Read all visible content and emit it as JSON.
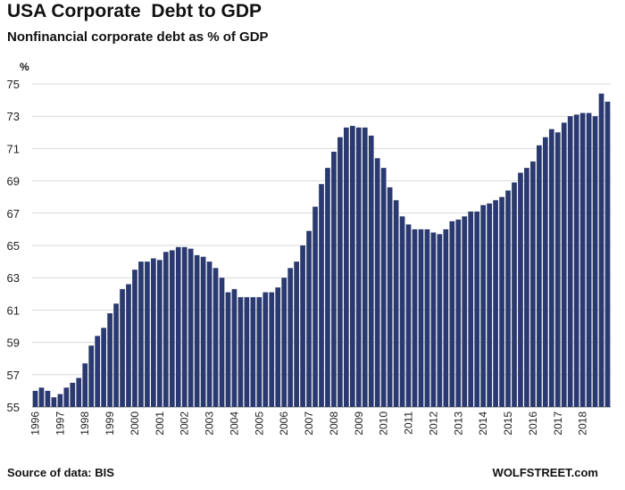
{
  "chart_data": {
    "type": "bar",
    "title": "USA Corporate  Debt to GDP",
    "subtitle": "Nonfinancial corporate debt as % of GDP",
    "ylabel": "%",
    "source": "Source of data: BIS",
    "credit": "WOLFSTREET.com",
    "ylim": [
      55,
      75
    ],
    "yticks": [
      55,
      57,
      59,
      61,
      63,
      65,
      67,
      69,
      71,
      73,
      75
    ],
    "xticks": [
      "1996",
      "1997",
      "1998",
      "1999",
      "2000",
      "2001",
      "2002",
      "2003",
      "2004",
      "2005",
      "2006",
      "2007",
      "2008",
      "2009",
      "2010",
      "2011",
      "2012",
      "2013",
      "2014",
      "2015",
      "2016",
      "2017",
      "2018"
    ],
    "bar_color": "#2a3a70",
    "grid": "horizontal",
    "series": [
      {
        "values": [
          56.0,
          56.2,
          56.0,
          55.6,
          55.8,
          56.2,
          56.5,
          56.8,
          57.7,
          58.8,
          59.4,
          59.9,
          60.8,
          61.4,
          62.3,
          62.6,
          63.5,
          64.0,
          64.0,
          64.2,
          64.1,
          64.6,
          64.7,
          64.9,
          64.9,
          64.8,
          64.4,
          64.3,
          64.0,
          63.6,
          63.0,
          62.1,
          62.3,
          61.8,
          61.8,
          61.8,
          61.8,
          62.1,
          62.1,
          62.4,
          63.0,
          63.6,
          64.0,
          65.0,
          65.9,
          67.4,
          68.8,
          69.8,
          70.8,
          71.7,
          72.3,
          72.4,
          72.3,
          72.3,
          71.8,
          70.4,
          69.8,
          68.6,
          67.8,
          66.8,
          66.3,
          66.0,
          66.0,
          66.0,
          65.8,
          65.7,
          66.0,
          66.5,
          66.6,
          66.8,
          67.1,
          67.1,
          67.5,
          67.6,
          67.8,
          68.0,
          68.4,
          68.9,
          69.5,
          69.8,
          70.2,
          71.2,
          71.7,
          72.2,
          72.0,
          72.6,
          73.0,
          73.1,
          73.2,
          73.2,
          73.0,
          74.4,
          73.9
        ]
      }
    ]
  }
}
